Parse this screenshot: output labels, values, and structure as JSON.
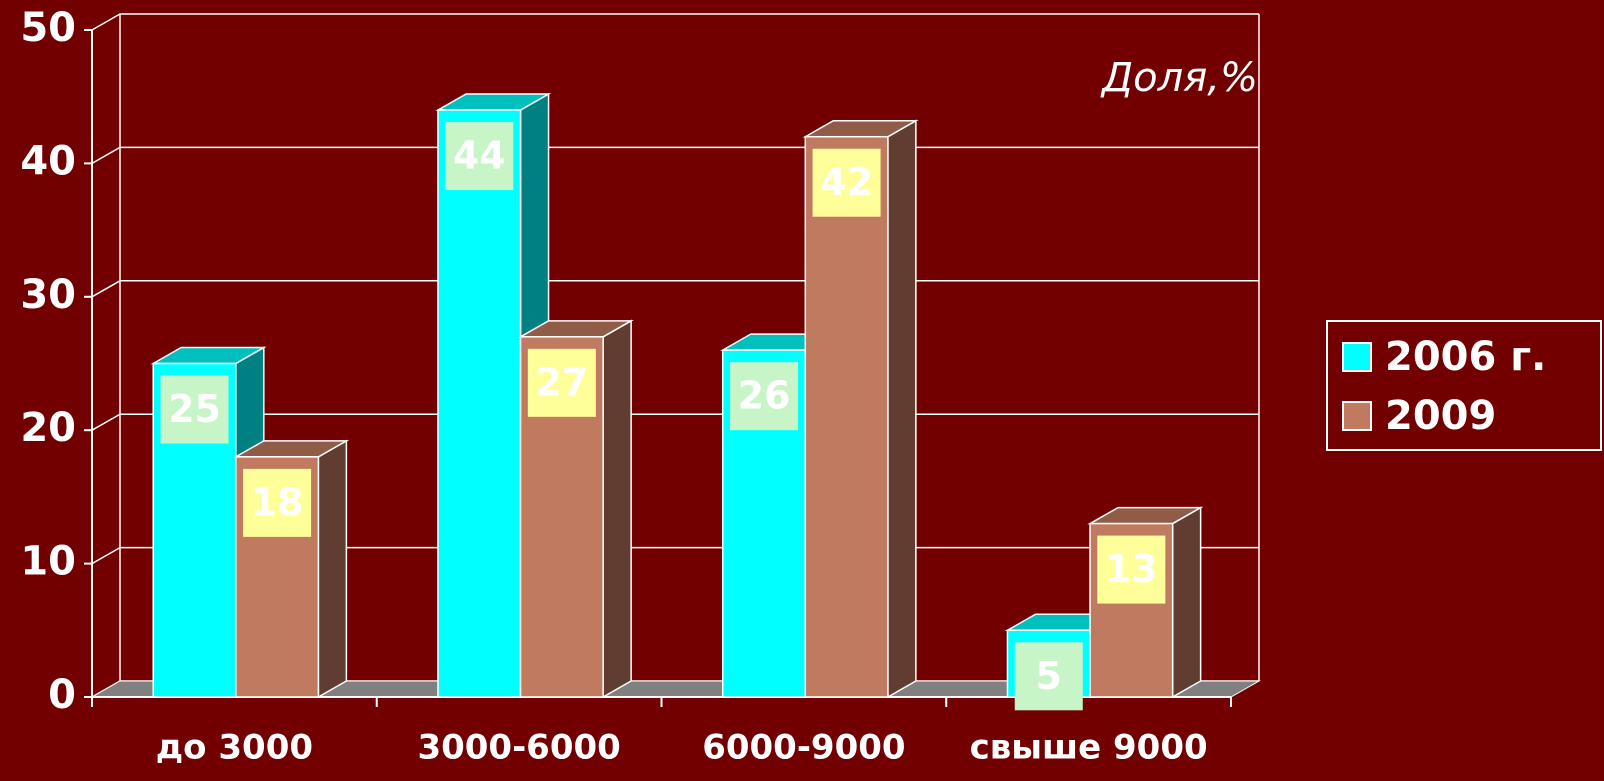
{
  "chart_data": {
    "type": "bar3d",
    "annotation": "Доля,%",
    "categories": [
      "до 3000",
      "3000-6000",
      "6000-9000",
      "свыше 9000"
    ],
    "series": [
      {
        "name": "2006 г.",
        "color": "#00ffff",
        "values": [
          25,
          44,
          26,
          5
        ]
      },
      {
        "name": "2009",
        "color": "#c07a60",
        "values": [
          18,
          27,
          42,
          13
        ]
      }
    ],
    "ylim": [
      0,
      50
    ],
    "yticks": [
      0,
      10,
      20,
      30,
      40,
      50
    ],
    "grid": true,
    "legend": "right"
  }
}
